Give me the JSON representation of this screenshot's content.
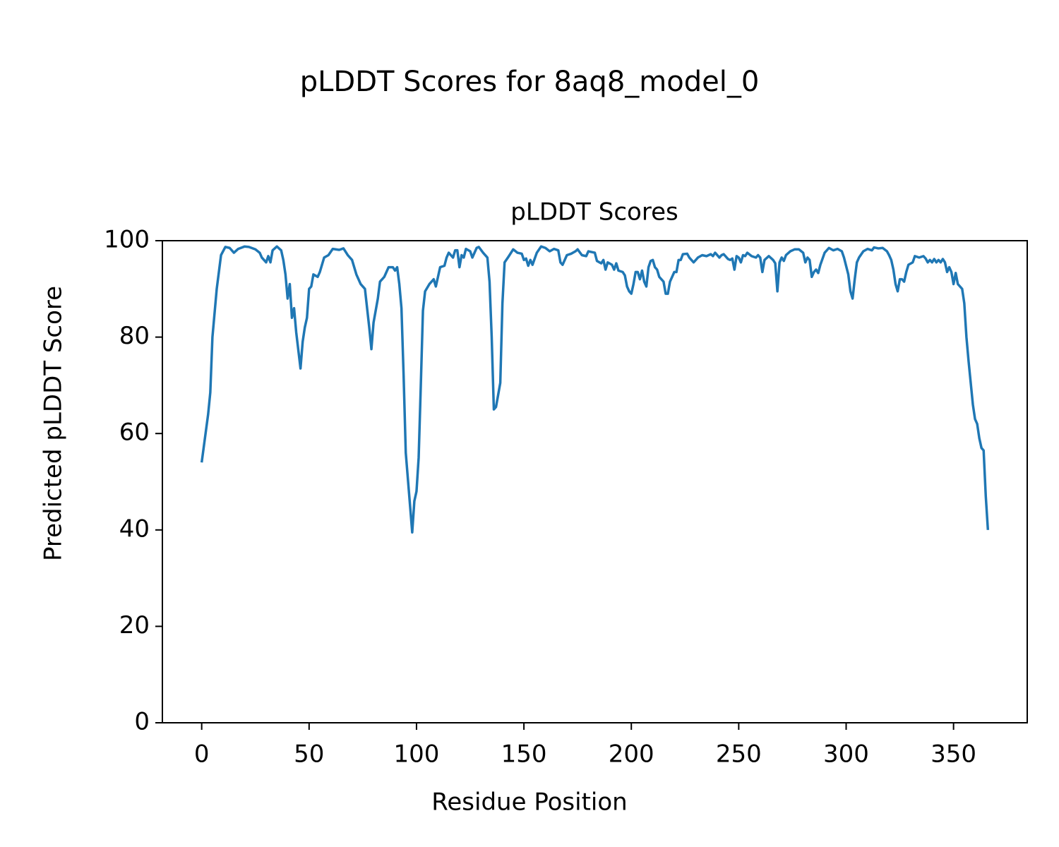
{
  "chart_data": {
    "type": "line",
    "title": "pLDDT Scores for 8aq8_model_0",
    "subtitle": "pLDDT Scores",
    "x_label": "Residue Position",
    "y_label": "Predicted pLDDT Score",
    "color": "#1f77b4",
    "xlim": [
      -18.3,
      384.3
    ],
    "ylim": [
      0,
      100
    ],
    "xticks": [
      0,
      50,
      100,
      150,
      200,
      250,
      300,
      350
    ],
    "yticks": [
      0,
      20,
      40,
      60,
      80,
      100
    ],
    "x": [
      0,
      3,
      4,
      5,
      7,
      9,
      11,
      13,
      15,
      17,
      20,
      22,
      25,
      27,
      28,
      29,
      30,
      31,
      32,
      33,
      35,
      37,
      38,
      39,
      40,
      41,
      42,
      43,
      44,
      46,
      47,
      48,
      49,
      50,
      51,
      52,
      54,
      55,
      57,
      59,
      61,
      64,
      66,
      68,
      70,
      72,
      74,
      76,
      78,
      79,
      80,
      82,
      83,
      85,
      87,
      89,
      90,
      91,
      92,
      93,
      94,
      95,
      97,
      98,
      99,
      100,
      101,
      102,
      103,
      104,
      106,
      108,
      109,
      110,
      111,
      113,
      114,
      115,
      117,
      118,
      119,
      120,
      121,
      122,
      123,
      125,
      126,
      128,
      129,
      131,
      133,
      134,
      135,
      136,
      137,
      138,
      139,
      140,
      141,
      143,
      145,
      147,
      149,
      150,
      151,
      152,
      153,
      154,
      156,
      158,
      160,
      162,
      164,
      166,
      167,
      168,
      170,
      172,
      174,
      175,
      177,
      179,
      180,
      183,
      184,
      186,
      187,
      188,
      189,
      191,
      192,
      193,
      194,
      196,
      197,
      198,
      199,
      200,
      201,
      202,
      203,
      204,
      205,
      206,
      207,
      208,
      209,
      210,
      211,
      212,
      213,
      215,
      216,
      217,
      218,
      220,
      221,
      222,
      223,
      224,
      226,
      227,
      229,
      231,
      233,
      235,
      237,
      238,
      239,
      241,
      242,
      243,
      245,
      246,
      247,
      248,
      249,
      250,
      251,
      252,
      253,
      254,
      256,
      258,
      259,
      260,
      261,
      262,
      264,
      266,
      267,
      268,
      269,
      270,
      271,
      272,
      274,
      276,
      278,
      280,
      281,
      282,
      283,
      284,
      285,
      286,
      287,
      288,
      290,
      292,
      294,
      296,
      298,
      299,
      301,
      302,
      303,
      304,
      305,
      306,
      308,
      310,
      312,
      313,
      315,
      317,
      319,
      320,
      321,
      322,
      323,
      324,
      325,
      326,
      327,
      328,
      329,
      331,
      332,
      334,
      336,
      337,
      338,
      339,
      340,
      341,
      342,
      343,
      344,
      345,
      346,
      347,
      348,
      349,
      350,
      351,
      352,
      353,
      354,
      355,
      356,
      357,
      359,
      360,
      361,
      362,
      363,
      364,
      365,
      366
    ],
    "values": [
      54,
      64,
      68.5,
      80,
      90,
      97,
      98.7,
      98.5,
      97.5,
      98.3,
      98.8,
      98.7,
      98.2,
      97.5,
      96.5,
      96,
      95.5,
      96.8,
      95.5,
      98,
      98.8,
      98,
      96,
      93,
      88,
      91,
      84,
      86,
      81,
      73.5,
      79,
      82,
      84,
      90,
      90.5,
      93,
      92.5,
      93.5,
      96.5,
      97,
      98.3,
      98.1,
      98.4,
      97,
      96,
      93,
      91,
      90,
      82,
      77.5,
      83,
      88,
      91.5,
      92.5,
      94.5,
      94.5,
      93.8,
      94.5,
      91,
      86,
      72,
      56,
      45,
      39.5,
      46,
      48,
      55,
      70,
      85.5,
      89.5,
      91,
      92,
      90.5,
      92.5,
      94.5,
      94.8,
      96.5,
      97.5,
      96.5,
      98,
      98,
      94.5,
      97,
      96.5,
      98.3,
      97.8,
      96.5,
      98.5,
      98.7,
      97.5,
      96.5,
      91.5,
      80,
      65,
      65.5,
      68,
      70.5,
      87,
      95.5,
      96.8,
      98.2,
      97.5,
      97.3,
      96,
      96.3,
      94.8,
      96,
      95,
      97.5,
      98.8,
      98.5,
      97.8,
      98.3,
      98,
      95.5,
      95,
      97,
      97.3,
      97.8,
      98.2,
      97,
      96.8,
      97.8,
      97.5,
      95.8,
      95.3,
      96,
      94,
      95.5,
      95,
      94,
      95.3,
      93.8,
      93.5,
      92.8,
      90.5,
      89.5,
      89,
      91,
      93.5,
      93.5,
      92,
      93.8,
      91.5,
      90.5,
      94.5,
      95.8,
      96,
      94.5,
      94,
      92.5,
      91.5,
      89,
      89,
      91.5,
      93.5,
      93.5,
      96,
      96,
      97.2,
      97.3,
      96.5,
      95.5,
      96.5,
      97,
      96.8,
      97.2,
      96.8,
      97.5,
      96.5,
      97,
      97.2,
      96.2,
      96,
      96.3,
      94,
      96.8,
      96.5,
      95.5,
      97,
      96.8,
      97.5,
      96.8,
      96.5,
      97,
      96.5,
      93.5,
      96,
      96.8,
      96,
      95.3,
      89.5,
      95.5,
      96.5,
      95.8,
      97,
      97.8,
      98.2,
      98.2,
      97.5,
      95.5,
      96.5,
      96,
      92.5,
      93.5,
      94,
      93.3,
      95,
      97.5,
      98.5,
      98,
      98.3,
      97.8,
      96.5,
      93,
      89.5,
      88,
      92,
      95.5,
      96.5,
      97.8,
      98.3,
      98,
      98.6,
      98.4,
      98.5,
      97.8,
      97,
      96,
      94,
      91,
      89.5,
      92,
      92,
      91.5,
      93.5,
      95,
      95.5,
      96.8,
      96.5,
      96.8,
      96.3,
      95.5,
      96,
      95.5,
      96.2,
      95.5,
      96,
      95.5,
      96.2,
      95.5,
      93.5,
      94.5,
      93.5,
      91,
      93.3,
      91,
      90.5,
      90,
      87,
      80,
      75,
      66,
      63,
      62,
      59,
      57,
      56.5,
      47,
      40
    ]
  }
}
